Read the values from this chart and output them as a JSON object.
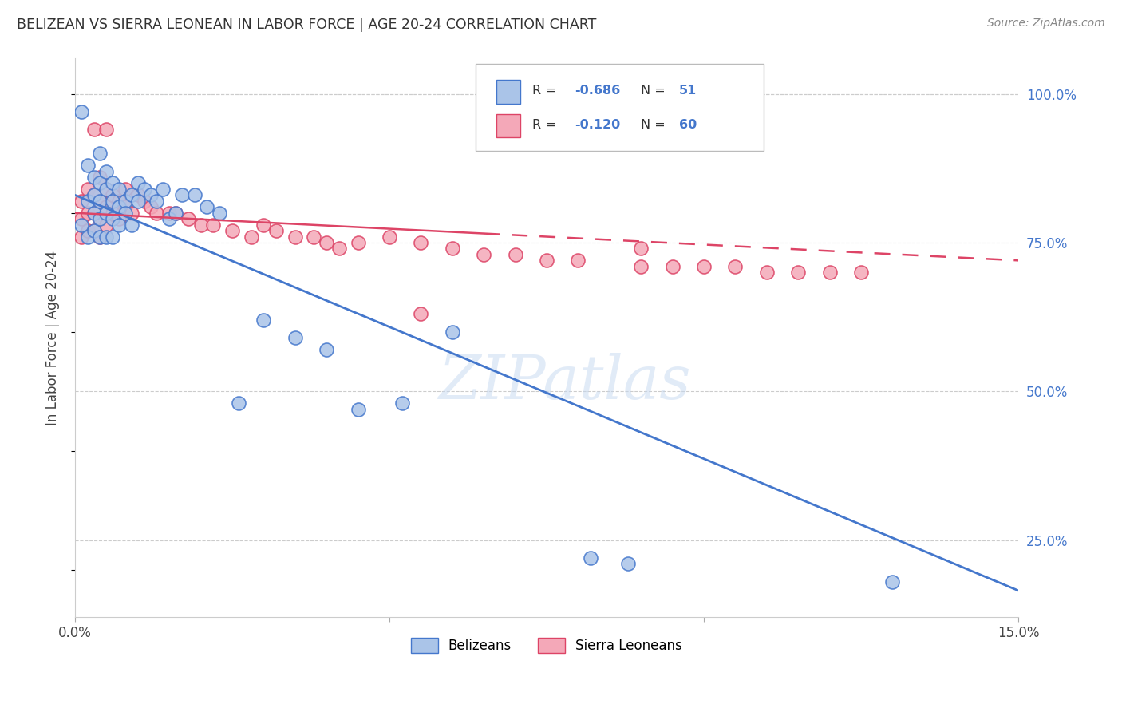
{
  "title": "BELIZEAN VS SIERRA LEONEAN IN LABOR FORCE | AGE 20-24 CORRELATION CHART",
  "source": "Source: ZipAtlas.com",
  "ylabel": "In Labor Force | Age 20-24",
  "xlim": [
    0.0,
    0.15
  ],
  "ylim": [
    0.12,
    1.06
  ],
  "yticks_right": [
    0.25,
    0.5,
    0.75,
    1.0
  ],
  "ytick_labels_right": [
    "25.0%",
    "50.0%",
    "75.0%",
    "100.0%"
  ],
  "background_color": "#ffffff",
  "grid_color": "#cccccc",
  "watermark": "ZIPatlas",
  "blue_color": "#aac4e8",
  "pink_color": "#f4a8b8",
  "blue_line_color": "#4477cc",
  "pink_line_color": "#dd4466",
  "blue_r": "-0.686",
  "blue_n": "51",
  "pink_r": "-0.120",
  "pink_n": "60",
  "belizean_x": [
    0.001,
    0.001,
    0.002,
    0.002,
    0.002,
    0.003,
    0.003,
    0.003,
    0.003,
    0.004,
    0.004,
    0.004,
    0.004,
    0.004,
    0.005,
    0.005,
    0.005,
    0.005,
    0.006,
    0.006,
    0.006,
    0.006,
    0.007,
    0.007,
    0.007,
    0.008,
    0.008,
    0.009,
    0.009,
    0.01,
    0.01,
    0.011,
    0.012,
    0.013,
    0.014,
    0.015,
    0.016,
    0.017,
    0.019,
    0.021,
    0.023,
    0.026,
    0.03,
    0.035,
    0.04,
    0.045,
    0.052,
    0.06,
    0.082,
    0.088,
    0.13
  ],
  "belizean_y": [
    0.97,
    0.78,
    0.88,
    0.82,
    0.76,
    0.86,
    0.83,
    0.8,
    0.77,
    0.9,
    0.85,
    0.82,
    0.79,
    0.76,
    0.87,
    0.84,
    0.8,
    0.76,
    0.85,
    0.82,
    0.79,
    0.76,
    0.84,
    0.81,
    0.78,
    0.82,
    0.8,
    0.83,
    0.78,
    0.85,
    0.82,
    0.84,
    0.83,
    0.82,
    0.84,
    0.79,
    0.8,
    0.83,
    0.83,
    0.81,
    0.8,
    0.48,
    0.62,
    0.59,
    0.57,
    0.47,
    0.48,
    0.6,
    0.22,
    0.21,
    0.18
  ],
  "sierraleone_x": [
    0.001,
    0.001,
    0.001,
    0.002,
    0.002,
    0.002,
    0.003,
    0.003,
    0.003,
    0.004,
    0.004,
    0.004,
    0.004,
    0.005,
    0.005,
    0.005,
    0.006,
    0.006,
    0.007,
    0.007,
    0.008,
    0.008,
    0.009,
    0.01,
    0.011,
    0.012,
    0.013,
    0.015,
    0.016,
    0.018,
    0.02,
    0.022,
    0.025,
    0.028,
    0.03,
    0.032,
    0.035,
    0.038,
    0.04,
    0.042,
    0.045,
    0.05,
    0.055,
    0.06,
    0.065,
    0.07,
    0.075,
    0.08,
    0.09,
    0.095,
    0.1,
    0.105,
    0.11,
    0.115,
    0.12,
    0.125,
    0.003,
    0.005,
    0.055,
    0.09
  ],
  "sierraleone_y": [
    0.82,
    0.79,
    0.76,
    0.84,
    0.8,
    0.77,
    0.83,
    0.8,
    0.77,
    0.86,
    0.82,
    0.79,
    0.76,
    0.84,
    0.81,
    0.78,
    0.83,
    0.8,
    0.82,
    0.79,
    0.84,
    0.81,
    0.8,
    0.83,
    0.82,
    0.81,
    0.8,
    0.8,
    0.8,
    0.79,
    0.78,
    0.78,
    0.77,
    0.76,
    0.78,
    0.77,
    0.76,
    0.76,
    0.75,
    0.74,
    0.75,
    0.76,
    0.75,
    0.74,
    0.73,
    0.73,
    0.72,
    0.72,
    0.71,
    0.71,
    0.71,
    0.71,
    0.7,
    0.7,
    0.7,
    0.7,
    0.94,
    0.94,
    0.63,
    0.74
  ]
}
